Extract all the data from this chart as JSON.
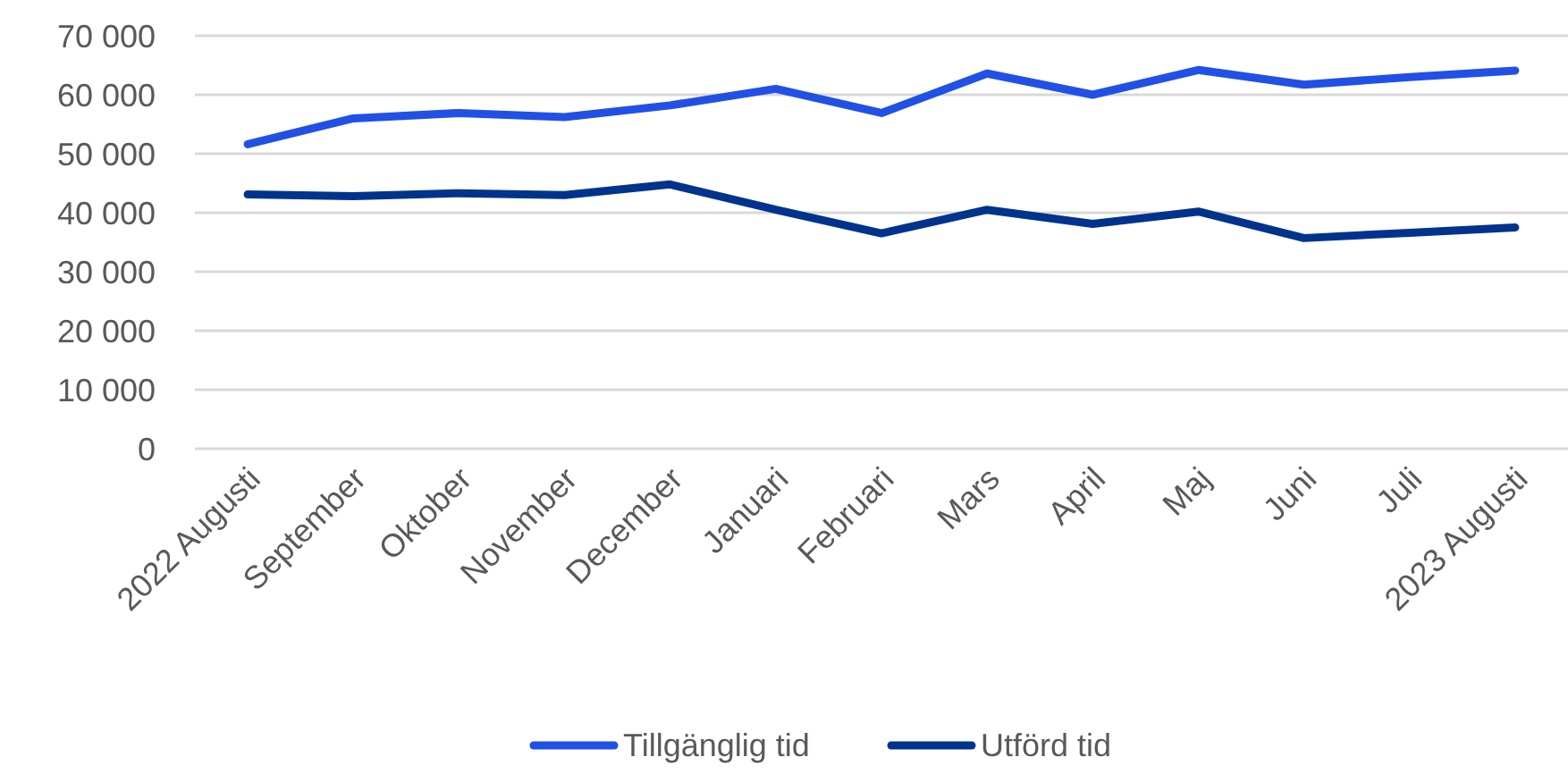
{
  "chart_data": {
    "type": "line",
    "categories": [
      "2022 Augusti",
      "September",
      "Oktober",
      "November",
      "December",
      "Januari",
      "Februari",
      "Mars",
      "April",
      "Maj",
      "Juni",
      "Juli",
      "2023 Augusti"
    ],
    "series": [
      {
        "name": "Tillgänglig tid",
        "color": "#2150e6",
        "values": [
          51600,
          56000,
          56900,
          56200,
          58200,
          61000,
          56900,
          63600,
          60000,
          64200,
          61700,
          63000,
          64100
        ]
      },
      {
        "name": "Utförd tid",
        "color": "#00338d",
        "values": [
          43100,
          42800,
          43300,
          43000,
          44800,
          40500,
          36500,
          40500,
          38100,
          40200,
          35700,
          36600,
          37500
        ]
      }
    ],
    "ylim": [
      0,
      70000
    ],
    "yticks": [
      {
        "value": 0,
        "label": "0"
      },
      {
        "value": 10000,
        "label": "10 000"
      },
      {
        "value": 20000,
        "label": "20 000"
      },
      {
        "value": 30000,
        "label": "30 000"
      },
      {
        "value": 40000,
        "label": "40 000"
      },
      {
        "value": 50000,
        "label": "50 000"
      },
      {
        "value": 60000,
        "label": "60 000"
      },
      {
        "value": 70000,
        "label": "70 000"
      }
    ],
    "grid": "y",
    "legend": "bottom",
    "marker": "none",
    "line_style": "solid"
  }
}
